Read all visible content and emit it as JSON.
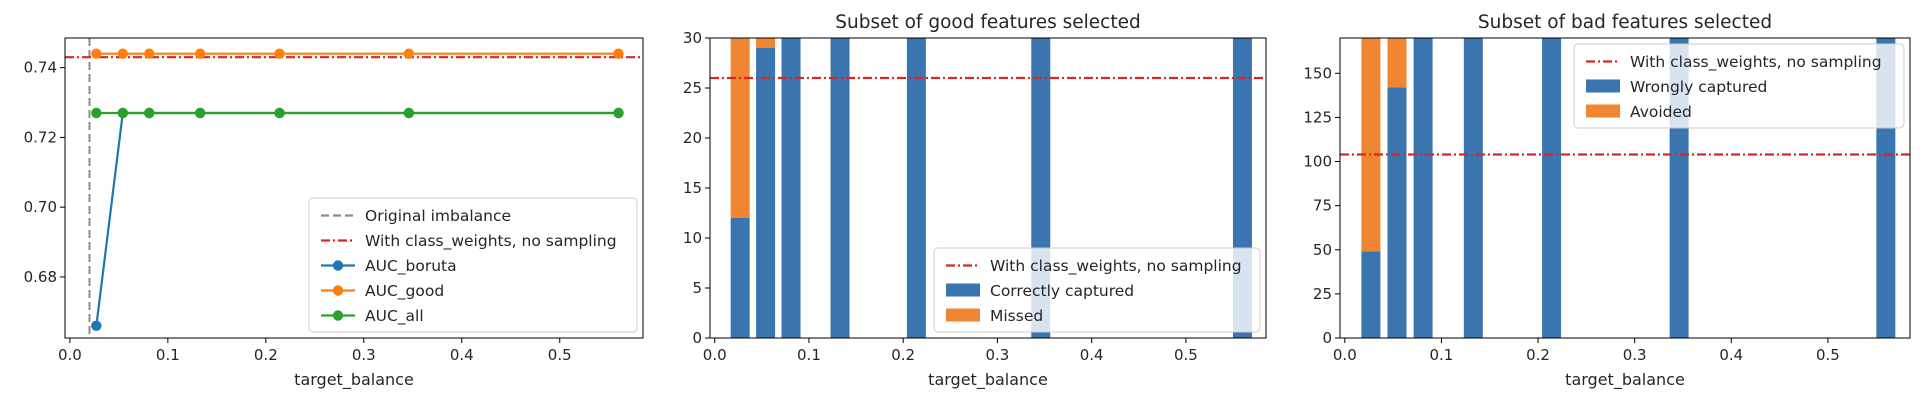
{
  "chart_data": [
    {
      "type": "line",
      "title": "",
      "xlabel": "target_balance",
      "ylabel": "",
      "xlim": [
        -0.005,
        0.585
      ],
      "ylim": [
        0.6625,
        0.7485
      ],
      "xticks": [
        "0.0",
        "0.1",
        "0.2",
        "0.3",
        "0.4",
        "0.5"
      ],
      "yticks": [
        "0.68",
        "0.70",
        "0.72",
        "0.74"
      ],
      "legend_position": "lower-right",
      "vertical_line": {
        "name": "Original imbalance",
        "x": 0.02,
        "color": "#8c8c8c",
        "style": "dashed"
      },
      "horizontal_line": {
        "name": "With class_weights, no sampling",
        "y": 0.743,
        "color": "#d62728",
        "style": "dashdot"
      },
      "x": [
        0.027,
        0.054,
        0.081,
        0.133,
        0.214,
        0.346,
        0.56
      ],
      "series": [
        {
          "name": "AUC_boruta",
          "color": "#1f77b4",
          "values": [
            0.666,
            0.727,
            0.727,
            0.727,
            0.727,
            0.727,
            0.727
          ]
        },
        {
          "name": "AUC_good",
          "color": "#ff7f0e",
          "values": [
            0.744,
            0.744,
            0.744,
            0.744,
            0.744,
            0.744,
            0.744
          ]
        },
        {
          "name": "AUC_all",
          "color": "#2ca02c",
          "values": [
            0.727,
            0.727,
            0.727,
            0.727,
            0.727,
            0.727,
            0.727
          ]
        }
      ]
    },
    {
      "type": "bar",
      "stacked": true,
      "title": "Subset of good features selected",
      "xlabel": "target_balance",
      "ylabel": "",
      "xlim": [
        -0.005,
        0.585
      ],
      "ylim": [
        0,
        30
      ],
      "xticks": [
        "0.0",
        "0.1",
        "0.2",
        "0.3",
        "0.4",
        "0.5"
      ],
      "yticks": [
        "0",
        "5",
        "10",
        "15",
        "20",
        "25",
        "30"
      ],
      "legend_position": "lower-right",
      "horizontal_line": {
        "name": "With class_weights, no sampling",
        "y": 26,
        "color": "#d62728",
        "style": "dashdot"
      },
      "x": [
        0.027,
        0.054,
        0.081,
        0.133,
        0.214,
        0.346,
        0.56
      ],
      "series": [
        {
          "name": "Correctly captured",
          "color": "#3a75b0",
          "values": [
            12,
            29,
            30,
            30,
            30,
            30,
            30
          ]
        },
        {
          "name": "Missed",
          "color": "#f08632",
          "values": [
            18,
            1,
            0,
            0,
            0,
            0,
            0
          ]
        }
      ]
    },
    {
      "type": "bar",
      "stacked": true,
      "title": "Subset of bad features selected",
      "xlabel": "target_balance",
      "ylabel": "",
      "xlim": [
        -0.005,
        0.585
      ],
      "ylim": [
        0,
        170
      ],
      "xticks": [
        "0.0",
        "0.1",
        "0.2",
        "0.3",
        "0.4",
        "0.5"
      ],
      "yticks": [
        "0",
        "25",
        "50",
        "75",
        "100",
        "125",
        "150"
      ],
      "legend_position": "upper-right",
      "horizontal_line": {
        "name": "With class_weights, no sampling",
        "y": 104,
        "color": "#d62728",
        "style": "dashdot"
      },
      "x": [
        0.027,
        0.054,
        0.081,
        0.133,
        0.214,
        0.346,
        0.56
      ],
      "series": [
        {
          "name": "Wrongly captured",
          "color": "#3a75b0",
          "values": [
            49,
            142,
            170,
            170,
            170,
            170,
            170
          ]
        },
        {
          "name": "Avoided",
          "color": "#f08632",
          "values": [
            121,
            28,
            0,
            0,
            0,
            0,
            0
          ]
        }
      ]
    }
  ]
}
